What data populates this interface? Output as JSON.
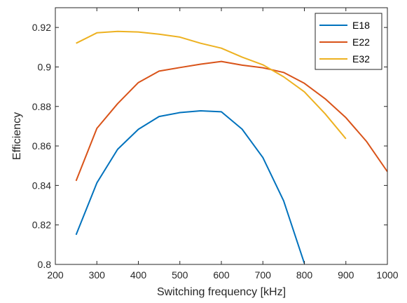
{
  "chart_data": {
    "type": "line",
    "xlabel": "Switching frequency [kHz]",
    "ylabel": "Efficiency",
    "xlim": [
      200,
      1000
    ],
    "ylim": [
      0.8,
      0.93
    ],
    "x_ticks": [
      200,
      300,
      400,
      500,
      600,
      700,
      800,
      900,
      1000
    ],
    "x_tick_labels": [
      "200",
      "300",
      "400",
      "500",
      "600",
      "700",
      "800",
      "900",
      "1000"
    ],
    "y_ticks": [
      0.8,
      0.82,
      0.84,
      0.86,
      0.88,
      0.9,
      0.92
    ],
    "y_tick_labels": [
      "0.8",
      "0.82",
      "0.84",
      "0.86",
      "0.88",
      "0.9",
      "0.92"
    ],
    "grid": false,
    "legend_position": "top-right",
    "series": [
      {
        "name": "E18",
        "color": "#0072BD",
        "x": [
          250,
          300,
          350,
          400,
          450,
          500,
          550,
          600,
          650,
          700,
          750,
          800
        ],
        "y": [
          0.815,
          0.8413,
          0.8583,
          0.8684,
          0.8749,
          0.8769,
          0.8778,
          0.8773,
          0.8685,
          0.8541,
          0.8322,
          0.8005
        ]
      },
      {
        "name": "E22",
        "color": "#D95319",
        "x": [
          250,
          300,
          350,
          400,
          450,
          500,
          550,
          600,
          650,
          700,
          750,
          800,
          850,
          900,
          950,
          1000
        ],
        "y": [
          0.8423,
          0.8689,
          0.8814,
          0.8921,
          0.8979,
          0.8997,
          0.9014,
          0.9028,
          0.9009,
          0.8996,
          0.8972,
          0.8917,
          0.8839,
          0.8743,
          0.8622,
          0.847
        ]
      },
      {
        "name": "E32",
        "color": "#EDB120",
        "x": [
          250,
          300,
          350,
          400,
          450,
          500,
          550,
          600,
          650,
          700,
          750,
          800,
          850,
          900
        ],
        "y": [
          0.912,
          0.9173,
          0.918,
          0.9177,
          0.9166,
          0.9151,
          0.912,
          0.9095,
          0.905,
          0.9011,
          0.895,
          0.8874,
          0.8763,
          0.8636
        ]
      }
    ]
  }
}
